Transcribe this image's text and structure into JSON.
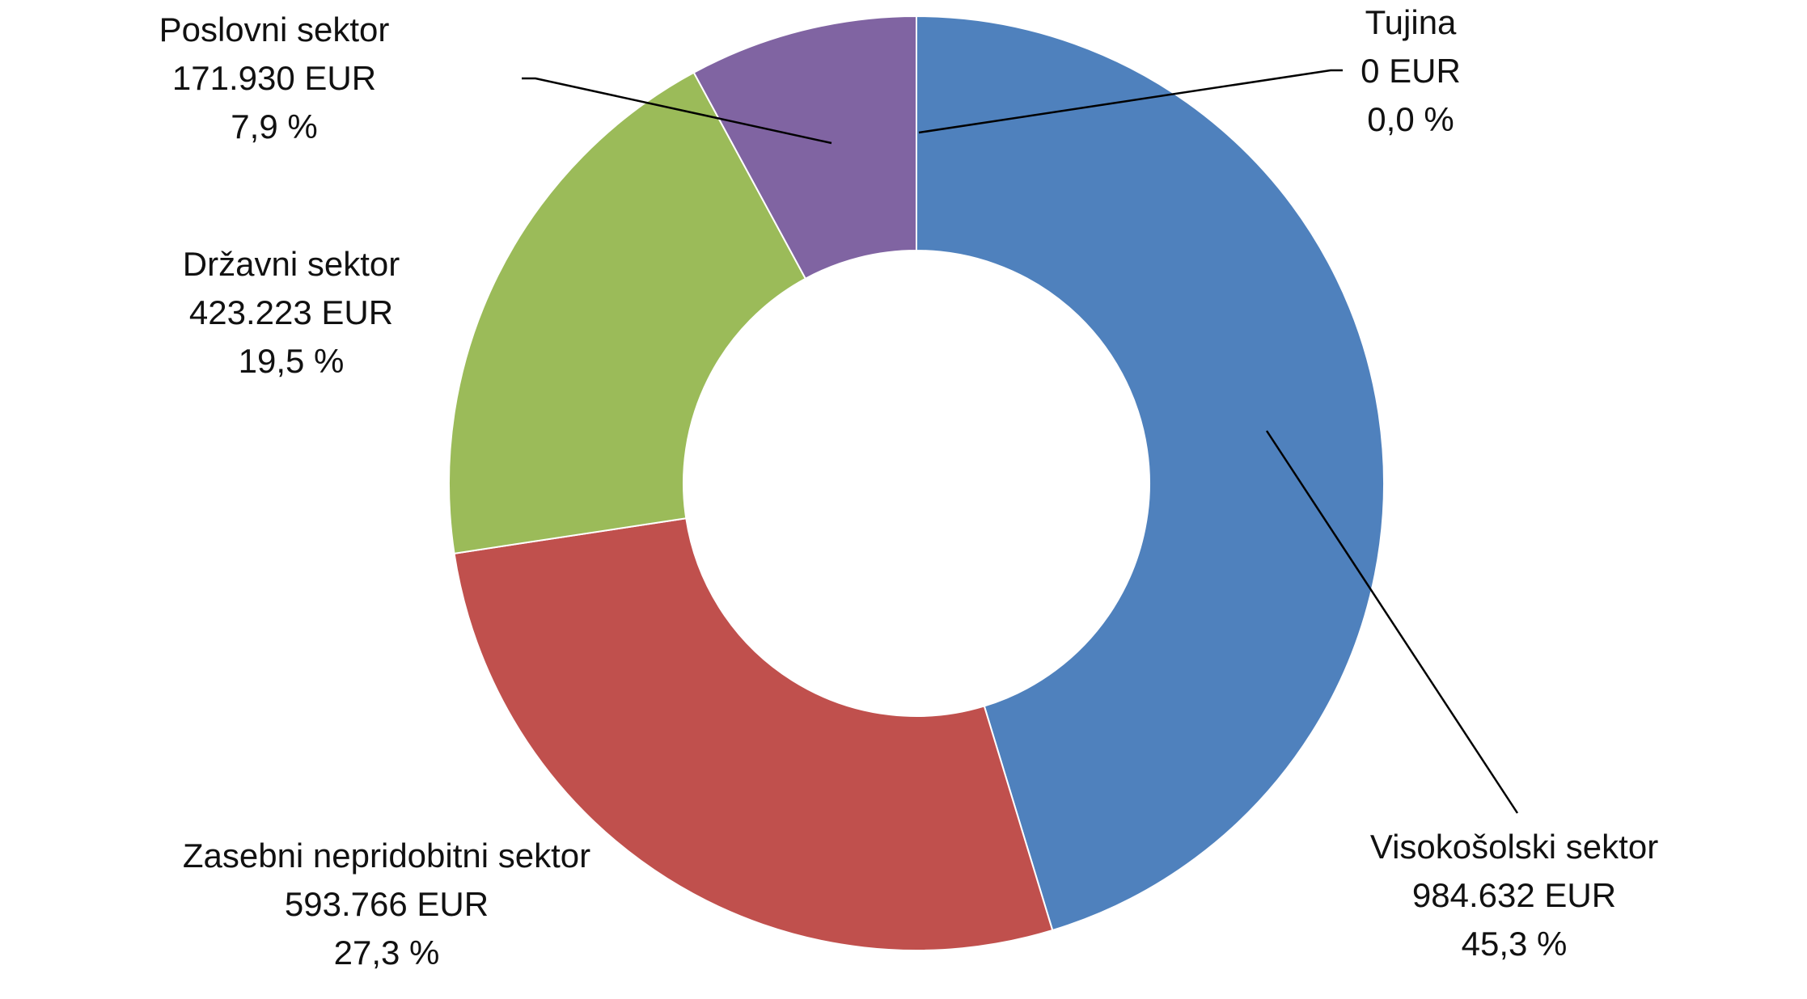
{
  "chart_data": {
    "type": "pie",
    "variant": "donut",
    "slices": [
      {
        "label": "Visokošolski sektor",
        "amount": "984.632 EUR",
        "percent_label": "45,3 %",
        "value": 984632,
        "percent": 45.3,
        "color": "#4F81BD"
      },
      {
        "label": "Zasebni nepridobitni sektor",
        "amount": "593.766 EUR",
        "percent_label": "27,3 %",
        "value": 593766,
        "percent": 27.3,
        "color": "#C0504D"
      },
      {
        "label": "Državni sektor",
        "amount": "423.223 EUR",
        "percent_label": "19,5 %",
        "value": 423223,
        "percent": 19.5,
        "color": "#9BBB59"
      },
      {
        "label": "Poslovni sektor",
        "amount": "171.930 EUR",
        "percent_label": "7,9 %",
        "value": 171930,
        "percent": 7.9,
        "color": "#8064A2"
      },
      {
        "label": "Tujina",
        "amount": "0 EUR",
        "percent_label": "0,0 %",
        "value": 0,
        "percent": 0.0,
        "color": "#F79646"
      }
    ],
    "start_angle": "12 o'clock",
    "direction": "clockwise",
    "legend": "none"
  }
}
